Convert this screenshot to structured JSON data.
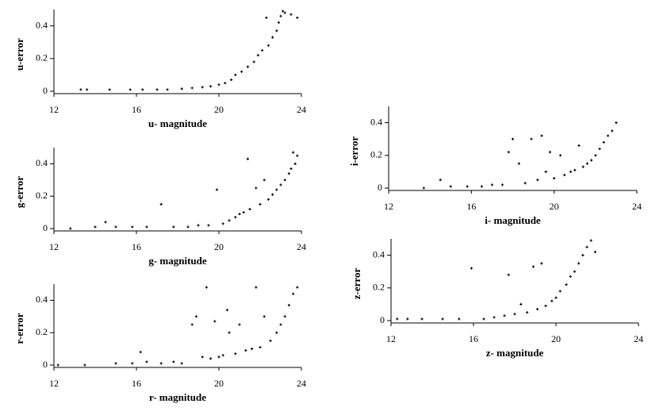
{
  "chart_data": [
    {
      "type": "scatter",
      "x_label": "u- magnitude",
      "y_label": "u-error",
      "color": "#000000",
      "xlim": [
        12,
        24
      ],
      "ylim": [
        0,
        0.5
      ],
      "xticks": [
        12,
        16,
        20,
        24
      ],
      "yticks": [
        0,
        0.2,
        0.4
      ],
      "x": [
        13.3,
        13.6,
        14.7,
        15.7,
        16.3,
        17,
        17.5,
        18.2,
        18.7,
        19.2,
        19.6,
        20,
        20.3,
        20.6,
        20.8,
        21.1,
        21.4,
        21.7,
        21.9,
        22.1,
        22.3,
        22.4,
        22.6,
        22.8,
        22.9,
        23,
        23.1,
        23.2,
        23.5,
        23.8
      ],
      "values": [
        0.01,
        0.01,
        0.01,
        0.01,
        0.01,
        0.01,
        0.01,
        0.015,
        0.02,
        0.025,
        0.03,
        0.04,
        0.05,
        0.07,
        0.1,
        0.12,
        0.15,
        0.18,
        0.22,
        0.25,
        0.45,
        0.28,
        0.33,
        0.37,
        0.42,
        0.46,
        0.49,
        0.48,
        0.47,
        0.45
      ]
    },
    {
      "type": "scatter",
      "x_label": "g- magnitude",
      "y_label": "g-error",
      "color": "#000000",
      "xlim": [
        12,
        24
      ],
      "ylim": [
        0,
        0.5
      ],
      "xticks": [
        12,
        16,
        20,
        24
      ],
      "yticks": [
        0,
        0.2,
        0.4
      ],
      "x": [
        12.8,
        14,
        14.5,
        15,
        15.8,
        16.5,
        17.2,
        17.8,
        18.5,
        19,
        19.5,
        19.9,
        20.2,
        20.5,
        20.8,
        21,
        21.2,
        21.4,
        21.5,
        21.8,
        22,
        22.2,
        22.4,
        22.6,
        22.8,
        23,
        23.2,
        23.4,
        23.5,
        23.6,
        23.7,
        23.8
      ],
      "values": [
        0,
        0.01,
        0.04,
        0.01,
        0.01,
        0.01,
        0.15,
        0.01,
        0.01,
        0.02,
        0.02,
        0.24,
        0.03,
        0.05,
        0.07,
        0.09,
        0.1,
        0.43,
        0.12,
        0.25,
        0.15,
        0.3,
        0.18,
        0.21,
        0.24,
        0.27,
        0.3,
        0.34,
        0.37,
        0.47,
        0.4,
        0.45
      ]
    },
    {
      "type": "scatter",
      "x_label": "r- magnitude",
      "y_label": "r-error",
      "color": "#000000",
      "xlim": [
        12,
        24
      ],
      "ylim": [
        0,
        0.5
      ],
      "xticks": [
        12,
        16,
        20,
        24
      ],
      "yticks": [
        0,
        0.2,
        0.4
      ],
      "x": [
        12.2,
        13.5,
        15,
        15.8,
        16.2,
        16.5,
        17.2,
        17.8,
        18.2,
        18.7,
        18.9,
        19.2,
        19.4,
        19.6,
        19.8,
        20,
        20.2,
        20.4,
        20.5,
        20.8,
        21,
        21.3,
        21.6,
        21.8,
        22,
        22.2,
        22.5,
        22.8,
        23,
        23.2,
        23.4,
        23.6,
        23.8
      ],
      "values": [
        0,
        0,
        0.01,
        0.01,
        0.08,
        0.02,
        0.01,
        0.02,
        0.01,
        0.25,
        0.3,
        0.05,
        0.48,
        0.04,
        0.27,
        0.05,
        0.06,
        0.34,
        0.2,
        0.07,
        0.25,
        0.09,
        0.1,
        0.48,
        0.11,
        0.3,
        0.15,
        0.2,
        0.25,
        0.3,
        0.37,
        0.44,
        0.48
      ]
    },
    {
      "type": "scatter",
      "x_label": "i- magnitude",
      "y_label": "i-error",
      "color": "#000000",
      "xlim": [
        12,
        24
      ],
      "ylim": [
        0,
        0.5
      ],
      "xticks": [
        12,
        16,
        20,
        24
      ],
      "yticks": [
        0,
        0.2,
        0.4
      ],
      "x": [
        13.7,
        14.5,
        15,
        15.8,
        16.5,
        17,
        17.5,
        17.8,
        18,
        18.3,
        18.6,
        18.9,
        19.2,
        19.4,
        19.6,
        19.8,
        20,
        20.3,
        20.5,
        20.8,
        21,
        21.2,
        21.4,
        21.6,
        21.8,
        22,
        22.2,
        22.4,
        22.6,
        22.8,
        23
      ],
      "values": [
        0,
        0.05,
        0.01,
        0.01,
        0.01,
        0.02,
        0.02,
        0.22,
        0.3,
        0.15,
        0.03,
        0.3,
        0.05,
        0.32,
        0.1,
        0.22,
        0.06,
        0.2,
        0.08,
        0.1,
        0.11,
        0.26,
        0.13,
        0.15,
        0.17,
        0.2,
        0.24,
        0.28,
        0.32,
        0.35,
        0.4
      ]
    },
    {
      "type": "scatter",
      "x_label": "z- magnitude",
      "y_label": "z-error",
      "color": "#000000",
      "xlim": [
        12,
        24
      ],
      "ylim": [
        0,
        0.5
      ],
      "xticks": [
        12,
        16,
        20,
        24
      ],
      "yticks": [
        0,
        0.2,
        0.4
      ],
      "x": [
        12.3,
        12.8,
        13.5,
        14.5,
        15.3,
        15.9,
        16.5,
        17,
        17.5,
        17.7,
        18,
        18.3,
        18.6,
        18.9,
        19.1,
        19.3,
        19.5,
        19.8,
        20,
        20.2,
        20.5,
        20.7,
        20.9,
        21.1,
        21.3,
        21.5,
        21.7,
        21.9
      ],
      "values": [
        0.01,
        0.01,
        0.01,
        0.01,
        0.01,
        0.32,
        0.01,
        0.02,
        0.03,
        0.28,
        0.04,
        0.1,
        0.05,
        0.33,
        0.07,
        0.35,
        0.09,
        0.12,
        0.14,
        0.18,
        0.22,
        0.27,
        0.3,
        0.35,
        0.4,
        0.45,
        0.49,
        0.42
      ]
    }
  ]
}
